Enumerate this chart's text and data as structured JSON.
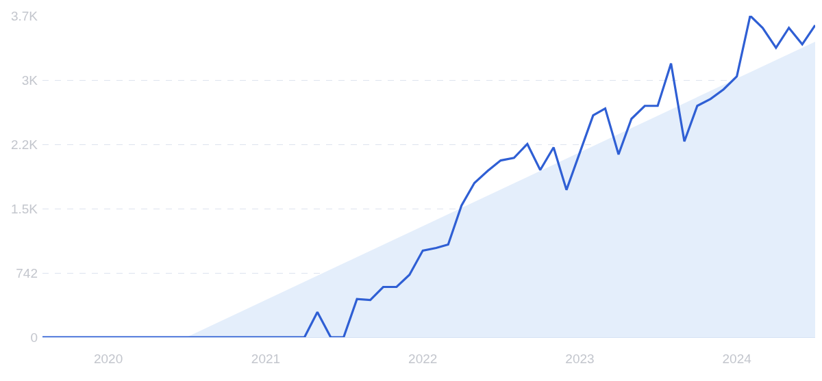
{
  "chart_data": {
    "type": "line",
    "xlim": [
      "2019-08",
      "2024-07"
    ],
    "xticks": [
      "2020",
      "2021",
      "2022",
      "2023",
      "2024"
    ],
    "ylim": [
      0,
      3710
    ],
    "yticks": [
      0,
      742,
      {
        "value": 1484,
        "label": "1.5K"
      },
      {
        "value": 2226,
        "label": "2.2K"
      },
      {
        "value": 2968,
        "label": "3K"
      },
      {
        "value": 3710,
        "label": "3.7K"
      }
    ],
    "grid": "y",
    "marker": "none",
    "line_style": "solid",
    "series": [
      {
        "type": "area",
        "color": "#e4eefb",
        "x": [
          "2020-07",
          "2024-07"
        ],
        "values": [
          0,
          3411
        ]
      },
      {
        "color": "#2f5fd4",
        "x": [
          "2019-08",
          "2019-09",
          "2019-10",
          "2019-11",
          "2019-12",
          "2020-01",
          "2020-02",
          "2020-03",
          "2020-04",
          "2020-05",
          "2020-06",
          "2020-07",
          "2020-08",
          "2020-09",
          "2020-10",
          "2020-11",
          "2020-12",
          "2021-01",
          "2021-02",
          "2021-03",
          "2021-04",
          "2021-05",
          "2021-06",
          "2021-07",
          "2021-08",
          "2021-09",
          "2021-10",
          "2021-11",
          "2021-12",
          "2022-01",
          "2022-02",
          "2022-03",
          "2022-04",
          "2022-05",
          "2022-06",
          "2022-07",
          "2022-08",
          "2022-09",
          "2022-10",
          "2022-11",
          "2022-12",
          "2023-01",
          "2023-02",
          "2023-03",
          "2023-04",
          "2023-05",
          "2023-06",
          "2023-07",
          "2023-08",
          "2023-09",
          "2023-10",
          "2023-11",
          "2023-12",
          "2024-01",
          "2024-02",
          "2024-03",
          "2024-04",
          "2024-05",
          "2024-06",
          "2024-07"
        ],
        "values": [
          0,
          0,
          0,
          0,
          0,
          0,
          0,
          0,
          0,
          0,
          0,
          0,
          0,
          0,
          0,
          0,
          0,
          0,
          0,
          0,
          0,
          290,
          0,
          0,
          440,
          430,
          580,
          580,
          720,
          1000,
          1030,
          1070,
          1520,
          1780,
          1920,
          2040,
          2070,
          2230,
          1930,
          2190,
          1700,
          2130,
          2560,
          2640,
          2110,
          2520,
          2670,
          2670,
          3160,
          2260,
          2670,
          2750,
          2860,
          3010,
          3710,
          3570,
          3340,
          3570,
          3380,
          3600
        ]
      }
    ]
  }
}
